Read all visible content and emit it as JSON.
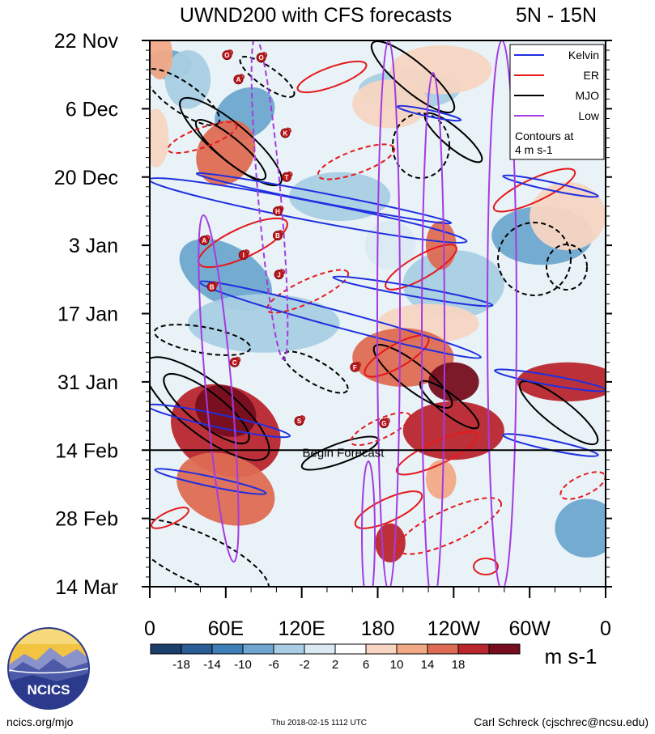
{
  "chart_data": {
    "type": "heatmap",
    "title": "UWND200 with CFS forecasts",
    "region_label": "5N - 15N",
    "xlabel": "",
    "ylabel": "",
    "x_ticks": [
      "0",
      "60E",
      "120E",
      "180",
      "120W",
      "60W",
      "0"
    ],
    "x_tick_values": [
      0,
      60,
      120,
      180,
      240,
      300,
      360
    ],
    "y_ticks": [
      "22 Nov",
      "6 Dec",
      "20 Dec",
      "3 Jan",
      "17 Jan",
      "31 Jan",
      "14 Feb",
      "28 Feb",
      "14 Mar"
    ],
    "y_tick_days": [
      0,
      14,
      28,
      42,
      56,
      70,
      84,
      98,
      112
    ],
    "forecast_day": 84,
    "forecast_label": "Begin Forecast",
    "colorbar": {
      "unit": "m s-1",
      "levels": [
        "-18",
        "-14",
        "-10",
        "-6",
        "-2",
        "2",
        "6",
        "10",
        "14",
        "18"
      ],
      "colors": [
        "#1b3e6b",
        "#2a5c96",
        "#3f7fb8",
        "#6ea6cf",
        "#a9cde3",
        "#dbeaf2",
        "#ffffff",
        "#f7d5c2",
        "#f1a986",
        "#de6b53",
        "#b9262e",
        "#760e1f"
      ]
    },
    "legend": {
      "position": "top-right",
      "entries": [
        {
          "name": "Kelvin",
          "color": "#1f2fe0"
        },
        {
          "name": "ER",
          "color": "#e41a1c"
        },
        {
          "name": "MJO",
          "color": "#000000"
        },
        {
          "name": "Low",
          "color": "#a43be0"
        }
      ],
      "note_line1": "Contours at",
      "note_line2": "4 m s-1"
    },
    "storms": [
      {
        "letter": "O",
        "lon": 61,
        "day": 3
      },
      {
        "letter": "O",
        "lon": 88,
        "day": 3.5
      },
      {
        "letter": "A",
        "lon": 70,
        "day": 8
      },
      {
        "letter": "K",
        "lon": 107,
        "day": 19
      },
      {
        "letter": "T",
        "lon": 108,
        "day": 28
      },
      {
        "letter": "H",
        "lon": 101,
        "day": 35
      },
      {
        "letter": "B",
        "lon": 101,
        "day": 40
      },
      {
        "letter": "A",
        "lon": 43,
        "day": 41
      },
      {
        "letter": "I",
        "lon": 74,
        "day": 44
      },
      {
        "letter": "J",
        "lon": 102,
        "day": 48
      },
      {
        "letter": "B",
        "lon": 49,
        "day": 50.5
      },
      {
        "letter": "C",
        "lon": 67,
        "day": 66
      },
      {
        "letter": "F",
        "lon": 162,
        "day": 67
      },
      {
        "letter": "S",
        "lon": 118,
        "day": 78
      },
      {
        "letter": "G",
        "lon": 185,
        "day": 78.5
      }
    ],
    "blobs": [
      {
        "lon": 15,
        "day": 5,
        "rx": 18,
        "ry": 3,
        "rot": 0,
        "level": 3
      },
      {
        "lon": 30,
        "day": 8,
        "rx": 18,
        "ry": 6,
        "rot": 0,
        "level": 4
      },
      {
        "lon": 75,
        "day": 15,
        "rx": 25,
        "ry": 5,
        "rot": -30,
        "level": 3
      },
      {
        "lon": 205,
        "day": 10,
        "rx": 40,
        "ry": 4,
        "rot": 0,
        "level": 4
      },
      {
        "lon": 60,
        "day": 48,
        "rx": 40,
        "ry": 6,
        "rot": 30,
        "level": 3
      },
      {
        "lon": 90,
        "day": 58,
        "rx": 60,
        "ry": 6,
        "rot": 0,
        "level": 4
      },
      {
        "lon": 240,
        "day": 50,
        "rx": 40,
        "ry": 7,
        "rot": 0,
        "level": 4
      },
      {
        "lon": 310,
        "day": 40,
        "rx": 40,
        "ry": 6,
        "rot": 0,
        "level": 3
      },
      {
        "lon": 150,
        "day": 32,
        "rx": 40,
        "ry": 5,
        "rot": 0,
        "level": 4
      },
      {
        "lon": 345,
        "day": 100,
        "rx": 25,
        "ry": 6,
        "rot": 0,
        "level": 3
      },
      {
        "lon": 190,
        "day": 42,
        "rx": 20,
        "ry": 5,
        "rot": 0,
        "level": 5
      },
      {
        "lon": 5,
        "day": 20,
        "rx": 10,
        "ry": 6,
        "rot": 0,
        "level": 7
      },
      {
        "lon": 8,
        "day": 3,
        "rx": 10,
        "ry": 5,
        "rot": 0,
        "level": 8
      },
      {
        "lon": 60,
        "day": 23,
        "rx": 22,
        "ry": 7,
        "rot": 30,
        "level": 9
      },
      {
        "lon": 190,
        "day": 13,
        "rx": 30,
        "ry": 5,
        "rot": 0,
        "level": 7
      },
      {
        "lon": 230,
        "day": 6,
        "rx": 40,
        "ry": 5,
        "rot": 0,
        "level": 7
      },
      {
        "lon": 330,
        "day": 36,
        "rx": 30,
        "ry": 7,
        "rot": 0,
        "level": 7
      },
      {
        "lon": 220,
        "day": 58,
        "rx": 40,
        "ry": 4,
        "rot": 0,
        "level": 7
      },
      {
        "lon": 60,
        "day": 80,
        "rx": 45,
        "ry": 9,
        "rot": 25,
        "level": 10
      },
      {
        "lon": 60,
        "day": 92,
        "rx": 40,
        "ry": 7,
        "rot": 20,
        "level": 9
      },
      {
        "lon": 200,
        "day": 65,
        "rx": 40,
        "ry": 6,
        "rot": 0,
        "level": 9
      },
      {
        "lon": 240,
        "day": 80,
        "rx": 40,
        "ry": 6,
        "rot": 0,
        "level": 10
      },
      {
        "lon": 330,
        "day": 70,
        "rx": 40,
        "ry": 4,
        "rot": 0,
        "level": 10
      },
      {
        "lon": 190,
        "day": 103,
        "rx": 12,
        "ry": 4,
        "rot": 0,
        "level": 10
      },
      {
        "lon": 230,
        "day": 90,
        "rx": 12,
        "ry": 4,
        "rot": 0,
        "level": 8
      },
      {
        "lon": 240,
        "day": 70,
        "rx": 20,
        "ry": 4,
        "rot": 0,
        "level": 11
      },
      {
        "lon": 60,
        "day": 76,
        "rx": 25,
        "ry": 5,
        "rot": 25,
        "level": 11
      },
      {
        "lon": 230,
        "day": 42,
        "rx": 12,
        "ry": 5,
        "rot": 0,
        "level": 9
      }
    ]
  },
  "footer": {
    "left": "ncics.org/mjo",
    "mid": "Thu 2018-02-15 1112 UTC",
    "right": "Carl Schreck (cjschrec@ncsu.edu)"
  },
  "logo": {
    "text": "NCICS"
  }
}
